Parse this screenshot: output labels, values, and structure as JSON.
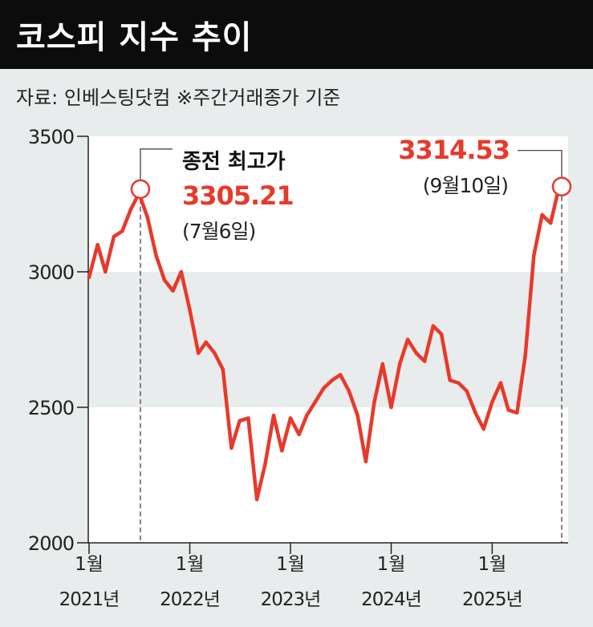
{
  "title": "코스피 지수 추이",
  "source": "자료: 인베스팅닷컴   ※주간거래종가 기준",
  "colors": {
    "line": "#e8392b",
    "accent": "#e8392b",
    "title_bg": "#0c0c0c",
    "band_light": "#ffffff",
    "band_gray": "#e9ecec"
  },
  "chart_data": {
    "type": "line",
    "title": "코스피 지수 추이",
    "xlabel": "",
    "ylabel": "",
    "ylim": [
      2000,
      3500
    ],
    "yticks": [
      {
        "value": 3500,
        "label": "3500"
      },
      {
        "value": 3000,
        "label": "3000"
      },
      {
        "value": 2500,
        "label": "2500"
      },
      {
        "value": 2000,
        "label": "2000"
      }
    ],
    "xticks": [
      {
        "month": "1월",
        "year": "2021년",
        "date": "2021-01"
      },
      {
        "month": "1월",
        "year": "2022년",
        "date": "2022-01"
      },
      {
        "month": "1월",
        "year": "2023년",
        "date": "2023-01"
      },
      {
        "month": "1월",
        "year": "2024년",
        "date": "2024-01"
      },
      {
        "month": "1월",
        "year": "2025년",
        "date": "2025-01"
      }
    ],
    "x": [
      "2021-01",
      "2021-02",
      "2021-03",
      "2021-04",
      "2021-05",
      "2021-06",
      "2021-07",
      "2021-08",
      "2021-09",
      "2021-10",
      "2021-11",
      "2021-12",
      "2022-01",
      "2022-02",
      "2022-03",
      "2022-04",
      "2022-05",
      "2022-06",
      "2022-07",
      "2022-08",
      "2022-09",
      "2022-10",
      "2022-11",
      "2022-12",
      "2023-01",
      "2023-02",
      "2023-03",
      "2023-04",
      "2023-05",
      "2023-06",
      "2023-07",
      "2023-08",
      "2023-09",
      "2023-10",
      "2023-11",
      "2023-12",
      "2024-01",
      "2024-02",
      "2024-03",
      "2024-04",
      "2024-05",
      "2024-06",
      "2024-07",
      "2024-08",
      "2024-09",
      "2024-10",
      "2024-11",
      "2024-12",
      "2025-01",
      "2025-02",
      "2025-03",
      "2025-04",
      "2025-05",
      "2025-06",
      "2025-07",
      "2025-08",
      "2025-09"
    ],
    "series": [
      {
        "values": [
          2980,
          3100,
          3000,
          3130,
          3150,
          3230,
          3290,
          3200,
          3060,
          2970,
          2930,
          3000,
          2860,
          2700,
          2740,
          2700,
          2640,
          2350,
          2450,
          2460,
          2160,
          2290,
          2470,
          2340,
          2460,
          2400,
          2470,
          2520,
          2570,
          2600,
          2620,
          2560,
          2470,
          2300,
          2520,
          2660,
          2500,
          2660,
          2750,
          2700,
          2670,
          2800,
          2770,
          2600,
          2590,
          2560,
          2480,
          2420,
          2520,
          2590,
          2490,
          2480,
          2690,
          3060,
          3210,
          3180,
          3314.53
        ]
      }
    ],
    "annotations": [
      {
        "label": "종전 최고가",
        "value_text": "3305.21",
        "date_text": "(7월6일)",
        "date": "2021-07-06",
        "value": 3305.21
      },
      {
        "value_text": "3314.53",
        "date_text": "(9월10일)",
        "date": "2025-09-10",
        "value": 3314.53
      }
    ]
  }
}
